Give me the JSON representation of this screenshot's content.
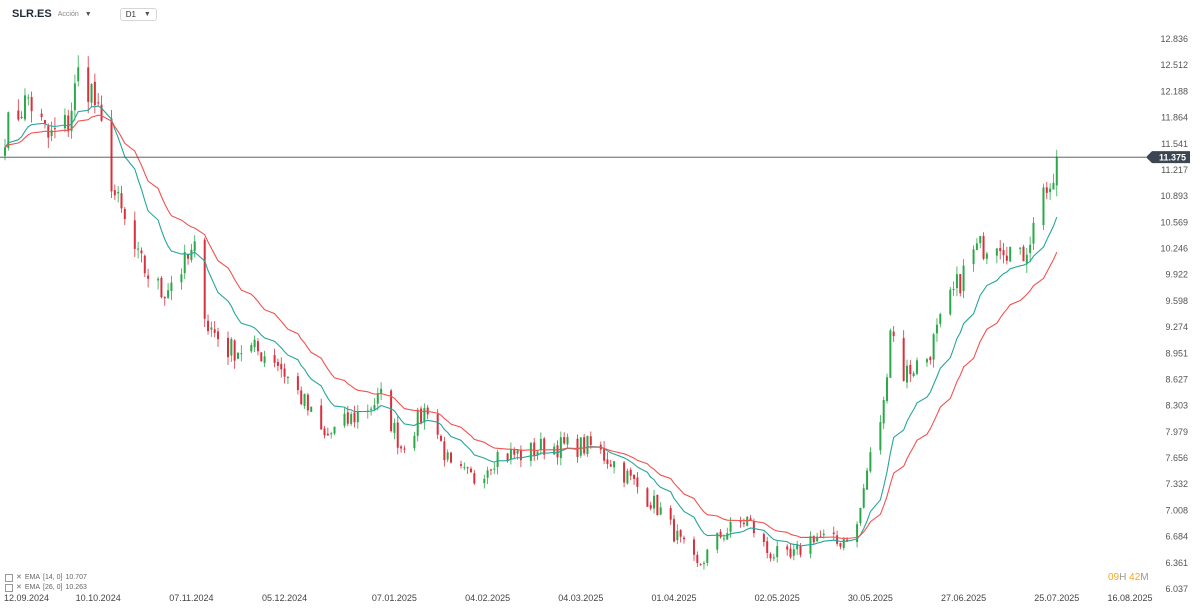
{
  "toolbar": {
    "symbol": "SLR.ES",
    "subtitle": "Acción",
    "timeframe": "D1",
    "symbol_chevron": "chevron-down-icon",
    "tf_chevron": "chevron-down-icon"
  },
  "current_price_label": "11.375",
  "countdown": {
    "hours": "09",
    "h": "H",
    "minutes": "42",
    "m": "M"
  },
  "indicators": [
    {
      "label": "EMA",
      "params": "[14, 0]",
      "value": "10.707",
      "color": "#26a69a"
    },
    {
      "label": "EMA",
      "params": "[26, 0]",
      "value": "10.263",
      "color": "#ef5350"
    }
  ],
  "colors": {
    "up": "#2ba84a",
    "down": "#d9303e",
    "ema14": "#26a69a",
    "ema26": "#ef5350",
    "price_line": "#4a4a4a",
    "price_tag_bg": "#3b4652"
  },
  "chart_data": {
    "type": "candlestick",
    "title": "SLR.ES",
    "ylim": [
      6.037,
      12.836
    ],
    "y_ticks": [
      "12.836",
      "12.512",
      "12.188",
      "11.864",
      "11.541",
      "11.217",
      "10.893",
      "10.569",
      "10.246",
      "9.922",
      "9.598",
      "9.274",
      "8.951",
      "8.627",
      "8.303",
      "7.979",
      "7.656",
      "7.332",
      "7.008",
      "6.684",
      "6.361",
      "6.037"
    ],
    "x_tick_labels": [
      "12.09.2024",
      "10.10.2024",
      "07.11.2024",
      "05.12.2024",
      "07.01.2025",
      "04.02.2025",
      "04.03.2025",
      "01.04.2025",
      "02.05.2025",
      "30.05.2025",
      "27.06.2025",
      "25.07.2025",
      "16.08.2025"
    ],
    "current_price": 11.375,
    "close_anchors": [
      {
        "date": "12.09.2024",
        "close": 11.7
      },
      {
        "date": "19.09.2024",
        "close": 12.1
      },
      {
        "date": "25.09.2024",
        "close": 11.6
      },
      {
        "date": "01.10.2024",
        "close": 11.8
      },
      {
        "date": "04.10.2024",
        "close": 12.4
      },
      {
        "date": "08.10.2024",
        "close": 12.2
      },
      {
        "date": "11.10.2024",
        "close": 11.7
      },
      {
        "date": "15.10.2024",
        "close": 10.9
      },
      {
        "date": "22.10.2024",
        "close": 10.1
      },
      {
        "date": "29.10.2024",
        "close": 9.7
      },
      {
        "date": "04.11.2024",
        "close": 10.0
      },
      {
        "date": "08.11.2024",
        "close": 10.2
      },
      {
        "date": "12.11.2024",
        "close": 9.3
      },
      {
        "date": "18.11.2024",
        "close": 9.0
      },
      {
        "date": "25.11.2024",
        "close": 9.0
      },
      {
        "date": "02.12.2024",
        "close": 8.9
      },
      {
        "date": "10.12.2024",
        "close": 8.4
      },
      {
        "date": "17.12.2024",
        "close": 7.9
      },
      {
        "date": "27.12.2024",
        "close": 8.2
      },
      {
        "date": "03.01.2025",
        "close": 8.4
      },
      {
        "date": "09.01.2025",
        "close": 7.8
      },
      {
        "date": "17.01.2025",
        "close": 8.3
      },
      {
        "date": "24.01.2025",
        "close": 7.5
      },
      {
        "date": "31.01.2025",
        "close": 7.4
      },
      {
        "date": "07.02.2025",
        "close": 7.7
      },
      {
        "date": "14.02.2025",
        "close": 7.7
      },
      {
        "date": "21.02.2025",
        "close": 7.8
      },
      {
        "date": "28.02.2025",
        "close": 7.8
      },
      {
        "date": "07.03.2025",
        "close": 7.8
      },
      {
        "date": "14.03.2025",
        "close": 7.6
      },
      {
        "date": "21.03.2025",
        "close": 7.3
      },
      {
        "date": "28.03.2025",
        "close": 7.0
      },
      {
        "date": "03.04.2025",
        "close": 6.6
      },
      {
        "date": "08.04.2025",
        "close": 6.3
      },
      {
        "date": "15.04.2025",
        "close": 6.7
      },
      {
        "date": "23.04.2025",
        "close": 6.9
      },
      {
        "date": "29.04.2025",
        "close": 6.5
      },
      {
        "date": "06.05.2025",
        "close": 6.4
      },
      {
        "date": "13.05.2025",
        "close": 6.7
      },
      {
        "date": "20.05.2025",
        "close": 6.6
      },
      {
        "date": "26.05.2025",
        "close": 6.8
      },
      {
        "date": "29.05.2025",
        "close": 7.5
      },
      {
        "date": "03.06.2025",
        "close": 8.3
      },
      {
        "date": "05.06.2025",
        "close": 9.3
      },
      {
        "date": "09.06.2025",
        "close": 8.7
      },
      {
        "date": "16.06.2025",
        "close": 8.9
      },
      {
        "date": "23.06.2025",
        "close": 9.6
      },
      {
        "date": "30.06.2025",
        "close": 10.2
      },
      {
        "date": "07.07.2025",
        "close": 10.4
      },
      {
        "date": "14.07.2025",
        "close": 10.1
      },
      {
        "date": "18.07.2025",
        "close": 10.5
      },
      {
        "date": "21.07.2025",
        "close": 11.1
      },
      {
        "date": "23.07.2025",
        "close": 10.8
      },
      {
        "date": "25.07.2025",
        "close": 11.375
      }
    ],
    "indicators": [
      {
        "name": "EMA [14, 0]",
        "period": 14,
        "last": 10.707
      },
      {
        "name": "EMA [26, 0]",
        "period": 26,
        "last": 10.263
      }
    ],
    "grid": false
  }
}
